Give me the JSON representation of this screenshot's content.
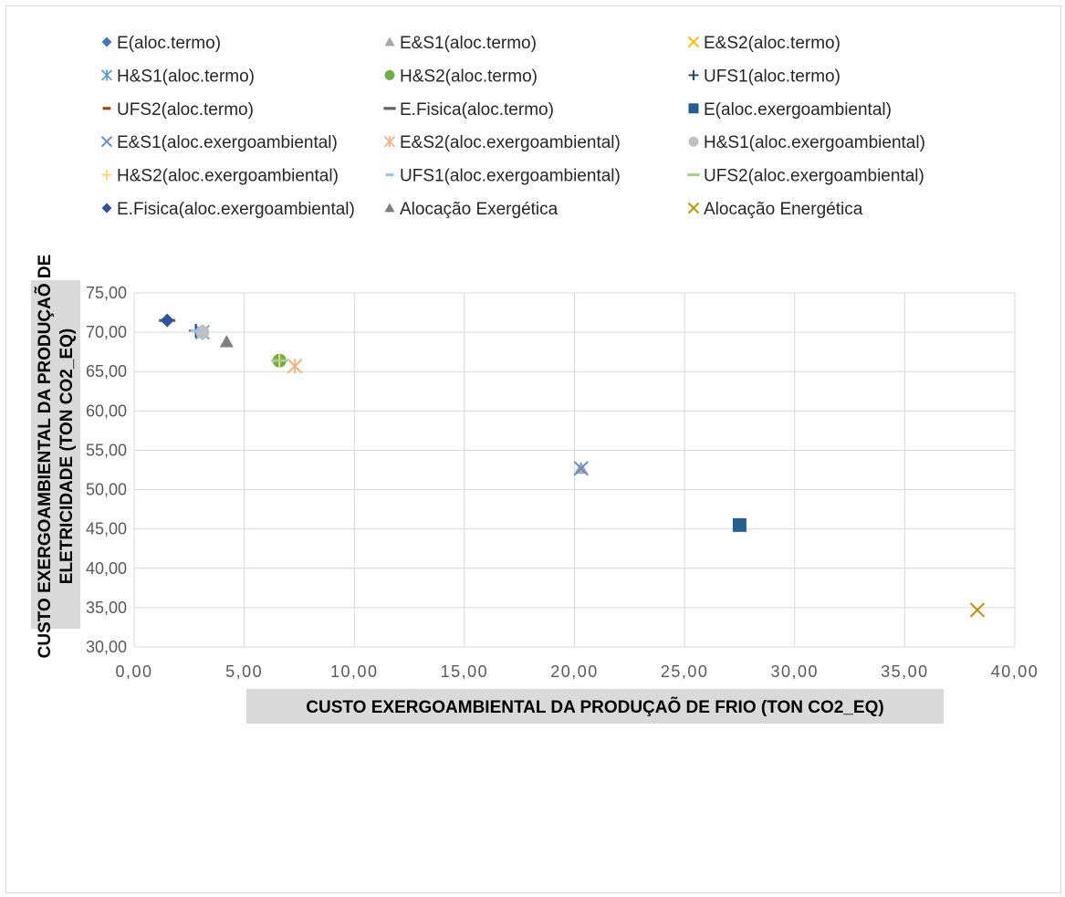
{
  "chart_data": {
    "type": "scatter",
    "xlabel": "CUSTO EXERGOAMBIENTAL DA PRODUÇAÕ DE FRIO (TON CO2_EQ)",
    "ylabel_lines": [
      "CUSTO EXERGOAMBIENTAL DA PRODUÇAÕ DE",
      "ELETRICIDADE (TON CO2_EQ)"
    ],
    "xlim": [
      0,
      40
    ],
    "ylim": [
      30,
      75
    ],
    "x_ticks": [
      "0,00",
      "5,00",
      "10,00",
      "15,00",
      "20,00",
      "25,00",
      "30,00",
      "35,00",
      "40,00"
    ],
    "y_ticks": [
      "30,00",
      "35,00",
      "40,00",
      "45,00",
      "50,00",
      "55,00",
      "60,00",
      "65,00",
      "70,00",
      "75,00"
    ],
    "x_tick_values": [
      0,
      5,
      10,
      15,
      20,
      25,
      30,
      35,
      40
    ],
    "y_tick_values": [
      30,
      35,
      40,
      45,
      50,
      55,
      60,
      65,
      70,
      75
    ],
    "grid": true,
    "legend_position": "top",
    "series": [
      {
        "name": "E(aloc.termo)",
        "marker": "diamond",
        "color": "#4472c4",
        "x": [
          27.5
        ],
        "y": [
          45.5
        ]
      },
      {
        "name": "E&S1(aloc.termo)",
        "marker": "triangle",
        "color": "#a5a5a5",
        "x": [
          20.3
        ],
        "y": [
          52.7
        ]
      },
      {
        "name": "E&S2(aloc.termo)",
        "marker": "x",
        "color": "#ffc000",
        "x": [
          7.3
        ],
        "y": [
          65.7
        ]
      },
      {
        "name": "H&S1(aloc.termo)",
        "marker": "star",
        "color": "#5b9bd5",
        "x": [
          3.1
        ],
        "y": [
          70.0
        ]
      },
      {
        "name": "H&S2(aloc.termo)",
        "marker": "circle",
        "color": "#70ad47",
        "x": [
          6.6
        ],
        "y": [
          66.4
        ]
      },
      {
        "name": "UFS1(aloc.termo)",
        "marker": "plus",
        "color": "#264478",
        "x": [
          2.8
        ],
        "y": [
          70.2
        ]
      },
      {
        "name": "UFS2(aloc.termo)",
        "marker": "dash",
        "color": "#9e480e",
        "x": [
          6.6
        ],
        "y": [
          66.4
        ]
      },
      {
        "name": "E.Fisica(aloc.termo)",
        "marker": "longdash",
        "color": "#636363",
        "x": [
          1.5
        ],
        "y": [
          71.5
        ]
      },
      {
        "name": "E(aloc.exergoambiental)",
        "marker": "square",
        "color": "#255e91",
        "x": [
          27.5
        ],
        "y": [
          45.5
        ]
      },
      {
        "name": "E&S1(aloc.exergoambiental)",
        "marker": "x",
        "color": "#698ed0",
        "x": [
          20.3
        ],
        "y": [
          52.7
        ]
      },
      {
        "name": "E&S2(aloc.exergoambiental)",
        "marker": "star",
        "color": "#f4b183",
        "x": [
          7.3
        ],
        "y": [
          65.7
        ]
      },
      {
        "name": "H&S1(aloc.exergoambiental)",
        "marker": "circle",
        "color": "#bfbfbf",
        "x": [
          3.1
        ],
        "y": [
          70.0
        ]
      },
      {
        "name": "H&S2(aloc.exergoambiental)",
        "marker": "plus",
        "color": "#ffd966",
        "x": [
          6.6
        ],
        "y": [
          66.4
        ]
      },
      {
        "name": "UFS1(aloc.exergoambiental)",
        "marker": "dash",
        "color": "#9dc3e6",
        "x": [
          2.8
        ],
        "y": [
          70.2
        ]
      },
      {
        "name": "UFS2(aloc.exergoambiental)",
        "marker": "longdash",
        "color": "#a9d18e",
        "x": [
          6.6
        ],
        "y": [
          66.4
        ]
      },
      {
        "name": "E.Fisica(aloc.exergoambiental)",
        "marker": "diamond",
        "color": "#2f5597",
        "x": [
          1.5
        ],
        "y": [
          71.5
        ]
      },
      {
        "name": "Alocação Exergética",
        "marker": "triangle",
        "color": "#7f7f7f",
        "x": [
          4.2
        ],
        "y": [
          68.8
        ]
      },
      {
        "name": "Alocação Energética",
        "marker": "x",
        "color": "#bf9000",
        "x": [
          38.3
        ],
        "y": [
          34.7
        ]
      }
    ]
  }
}
